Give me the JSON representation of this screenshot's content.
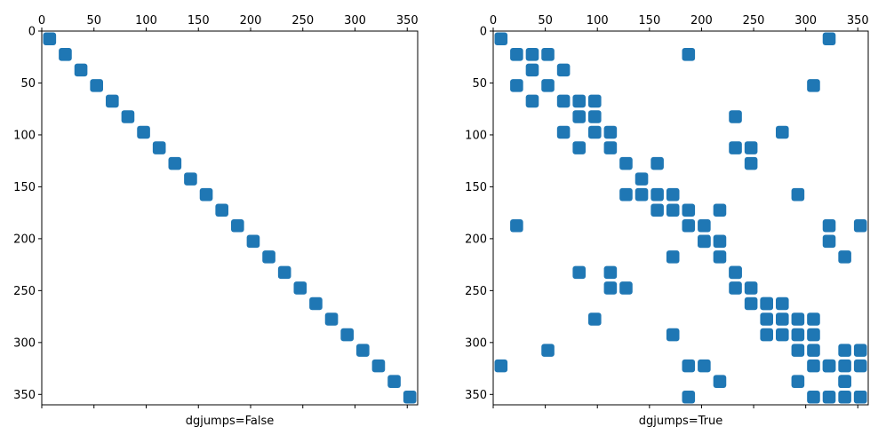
{
  "chart_data": [
    {
      "type": "heatmap",
      "subtype": "sparsity-pattern",
      "xlabel": "dgjumps=False",
      "xlim": [
        0,
        360
      ],
      "ylim": [
        360,
        0
      ],
      "x_ticks": [
        0,
        50,
        100,
        150,
        200,
        250,
        300,
        350
      ],
      "y_ticks": [
        0,
        50,
        100,
        150,
        200,
        250,
        300,
        350
      ],
      "x_axis_position": "top",
      "grid": false,
      "mark_color": "#1f77b4",
      "block_size": 15,
      "blocks": [
        [
          0,
          0
        ],
        [
          15,
          15
        ],
        [
          30,
          30
        ],
        [
          45,
          45
        ],
        [
          60,
          60
        ],
        [
          75,
          75
        ],
        [
          90,
          90
        ],
        [
          105,
          105
        ],
        [
          120,
          120
        ],
        [
          135,
          135
        ],
        [
          150,
          150
        ],
        [
          165,
          165
        ],
        [
          180,
          180
        ],
        [
          195,
          195
        ],
        [
          210,
          210
        ],
        [
          225,
          225
        ],
        [
          240,
          240
        ],
        [
          255,
          255
        ],
        [
          270,
          270
        ],
        [
          285,
          285
        ],
        [
          300,
          300
        ],
        [
          315,
          315
        ],
        [
          330,
          330
        ],
        [
          345,
          345
        ]
      ]
    },
    {
      "type": "heatmap",
      "subtype": "sparsity-pattern",
      "xlabel": "dgjumps=True",
      "xlim": [
        0,
        360
      ],
      "ylim": [
        360,
        0
      ],
      "x_ticks": [
        0,
        50,
        100,
        150,
        200,
        250,
        300,
        350
      ],
      "y_ticks": [
        0,
        50,
        100,
        150,
        200,
        250,
        300,
        350
      ],
      "x_axis_position": "top",
      "grid": false,
      "mark_color": "#1f77b4",
      "block_size": 15,
      "blocks": [
        [
          0,
          0
        ],
        [
          15,
          15
        ],
        [
          30,
          30
        ],
        [
          45,
          45
        ],
        [
          60,
          60
        ],
        [
          75,
          75
        ],
        [
          90,
          90
        ],
        [
          105,
          105
        ],
        [
          120,
          120
        ],
        [
          135,
          135
        ],
        [
          150,
          150
        ],
        [
          165,
          165
        ],
        [
          180,
          180
        ],
        [
          195,
          195
        ],
        [
          210,
          210
        ],
        [
          225,
          225
        ],
        [
          240,
          240
        ],
        [
          255,
          255
        ],
        [
          270,
          270
        ],
        [
          285,
          285
        ],
        [
          300,
          300
        ],
        [
          315,
          315
        ],
        [
          330,
          330
        ],
        [
          345,
          345
        ],
        [
          15,
          45
        ],
        [
          30,
          15
        ],
        [
          30,
          60
        ],
        [
          45,
          15
        ],
        [
          60,
          30
        ],
        [
          90,
          75
        ],
        [
          75,
          105
        ],
        [
          105,
          90
        ],
        [
          90,
          60
        ],
        [
          60,
          90
        ],
        [
          75,
          60
        ],
        [
          180,
          15
        ],
        [
          315,
          0
        ],
        [
          300,
          45
        ],
        [
          225,
          75
        ],
        [
          270,
          90
        ],
        [
          225,
          105
        ],
        [
          240,
          105
        ],
        [
          240,
          120
        ],
        [
          120,
          150
        ],
        [
          150,
          120
        ],
        [
          135,
          150
        ],
        [
          150,
          165
        ],
        [
          165,
          150
        ],
        [
          210,
          165
        ],
        [
          285,
          150
        ],
        [
          180,
          165
        ],
        [
          15,
          180
        ],
        [
          315,
          180
        ],
        [
          345,
          180
        ],
        [
          315,
          195
        ],
        [
          330,
          210
        ],
        [
          165,
          210
        ],
        [
          195,
          180
        ],
        [
          195,
          195
        ],
        [
          210,
          195
        ],
        [
          225,
          225
        ],
        [
          225,
          240
        ],
        [
          75,
          225
        ],
        [
          105,
          225
        ],
        [
          105,
          240
        ],
        [
          120,
          240
        ],
        [
          90,
          270
        ],
        [
          165,
          285
        ],
        [
          45,
          300
        ],
        [
          0,
          315
        ],
        [
          255,
          255
        ],
        [
          240,
          255
        ],
        [
          270,
          255
        ],
        [
          255,
          270
        ],
        [
          255,
          285
        ],
        [
          270,
          285
        ],
        [
          285,
          270
        ],
        [
          300,
          270
        ],
        [
          300,
          285
        ],
        [
          285,
          300
        ],
        [
          330,
          300
        ],
        [
          345,
          300
        ],
        [
          300,
          315
        ],
        [
          315,
          315
        ],
        [
          330,
          315
        ],
        [
          180,
          315
        ],
        [
          195,
          315
        ],
        [
          210,
          330
        ],
        [
          180,
          345
        ],
        [
          285,
          330
        ],
        [
          300,
          345
        ],
        [
          315,
          345
        ],
        [
          330,
          345
        ],
        [
          345,
          345
        ],
        [
          345,
          315
        ],
        [
          330,
          330
        ]
      ]
    }
  ]
}
